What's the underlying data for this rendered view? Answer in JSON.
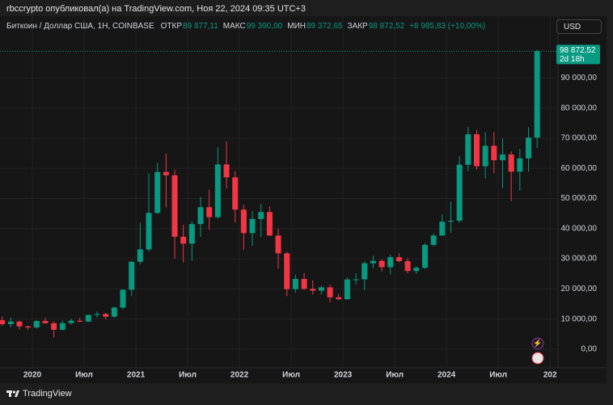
{
  "header": {
    "text": "rbccrypto опубликовал(а) на TradingView.com, Ноя 22, 2024 09:35 UTC+3"
  },
  "legend": {
    "symbol": "Биткоин / Доллар США, 1Н, COINBASE",
    "open_label": "ОТКР",
    "open": "89 877,11",
    "high_label": "МАКС",
    "high": "99 390,00",
    "low_label": "МИН",
    "low": "89 372,65",
    "close_label": "ЗАКР",
    "close": "98 872,52",
    "change": "+8 985,83 (+10,00%)"
  },
  "currency": "USD",
  "footer": "TradingView",
  "chart_data": {
    "type": "candlestick",
    "categories": [
      null,
      null,
      null,
      null,
      "2020",
      null,
      null,
      null,
      null,
      null,
      "Июл",
      null,
      null,
      null,
      null,
      null,
      "2021",
      null,
      null,
      null,
      null,
      null,
      "Июл",
      null,
      null,
      null,
      null,
      null,
      "2022",
      null,
      null,
      null,
      null,
      null,
      "Июл",
      null,
      null,
      null,
      null,
      null,
      "2023",
      null,
      null,
      null,
      null,
      null,
      "Июл",
      null,
      null,
      null,
      null,
      null,
      "2024",
      null,
      null,
      null,
      null,
      null,
      "Июл",
      null,
      null,
      null,
      null,
      null,
      "202"
    ],
    "open": [
      9600,
      8300,
      9150,
      7550,
      7190,
      9350,
      8600,
      6440,
      8650,
      9450,
      9140,
      11350,
      11650,
      10780,
      13800,
      19700,
      28990,
      33100,
      45200,
      58800,
      57700,
      37300,
      35000,
      41500,
      47100,
      43800,
      61300,
      57000,
      46300,
      38500,
      43200,
      45500,
      37700,
      31800,
      19900,
      23300,
      20000,
      19400,
      20500,
      17200,
      16550,
      23100,
      23150,
      28500,
      29300,
      27200,
      30500,
      29200,
      25950,
      27000,
      34600,
      37700,
      42300,
      42600,
      61200,
      71300,
      60700,
      67500,
      62700,
      64600,
      58900,
      63300,
      70200,
      null,
      null
    ],
    "high": [
      10900,
      10500,
      9500,
      7750,
      9580,
      10500,
      9200,
      9470,
      10070,
      10380,
      11450,
      12470,
      12080,
      14100,
      19850,
      29300,
      41950,
      58350,
      61800,
      64900,
      59500,
      41300,
      42400,
      50500,
      52900,
      67000,
      69000,
      59100,
      47900,
      45800,
      48200,
      47400,
      40000,
      32400,
      24700,
      25200,
      22800,
      21000,
      21500,
      18400,
      23800,
      25200,
      29200,
      31000,
      29800,
      31400,
      31800,
      30200,
      27500,
      35200,
      38400,
      44700,
      48900,
      64000,
      73800,
      72800,
      71900,
      72000,
      70000,
      65600,
      66500,
      73600,
      99390,
      null,
      null
    ],
    "low": [
      7700,
      7300,
      6500,
      6430,
      6870,
      8450,
      3850,
      6150,
      8100,
      8900,
      8900,
      10500,
      9850,
      10370,
      13200,
      17600,
      28100,
      32300,
      44900,
      47000,
      30000,
      28800,
      29300,
      37300,
      39600,
      43300,
      53300,
      42000,
      32900,
      34300,
      37200,
      37600,
      26700,
      17600,
      18800,
      19600,
      18100,
      18200,
      15500,
      16300,
      16500,
      21400,
      19600,
      26900,
      25800,
      24800,
      28900,
      25200,
      24900,
      26600,
      34100,
      37600,
      38600,
      41900,
      59100,
      59600,
      56600,
      58400,
      53500,
      49100,
      52600,
      58900,
      66800,
      null,
      null
    ],
    "close": [
      8300,
      9150,
      7550,
      7190,
      9350,
      8600,
      6440,
      8650,
      9450,
      9140,
      11350,
      11650,
      10780,
      13800,
      19700,
      28990,
      33100,
      45200,
      58800,
      57700,
      37300,
      35000,
      41500,
      47100,
      43800,
      61300,
      57000,
      46300,
      38500,
      43200,
      45500,
      37700,
      31800,
      19900,
      23300,
      20000,
      19400,
      20500,
      17200,
      16550,
      23100,
      23150,
      28500,
      29300,
      27200,
      30500,
      29200,
      25950,
      27000,
      34600,
      37700,
      42300,
      42600,
      61200,
      71300,
      60700,
      67500,
      62700,
      64600,
      58900,
      63300,
      70200,
      98872.52,
      null,
      null
    ],
    "up_color": "#089981",
    "down_color": "#f23645",
    "ylim": [
      -6200,
      110500
    ],
    "yticks": [
      {
        "value": 0,
        "label": "0,00"
      },
      {
        "value": 10000,
        "label": "10 000,00"
      },
      {
        "value": 20000,
        "label": "20 000,00"
      },
      {
        "value": 30000,
        "label": "30 000,00"
      },
      {
        "value": 40000,
        "label": "40 000,00"
      },
      {
        "value": 50000,
        "label": "50 000,00"
      },
      {
        "value": 60000,
        "label": "60 000,00"
      },
      {
        "value": 70000,
        "label": "70 000,00"
      },
      {
        "value": 80000,
        "label": "80 000,00"
      },
      {
        "value": 90000,
        "label": "90 000,00"
      }
    ],
    "last_price": {
      "value": 98872.52,
      "label": "98 872,52"
    },
    "countdown": "2d 18h",
    "grid": true
  }
}
